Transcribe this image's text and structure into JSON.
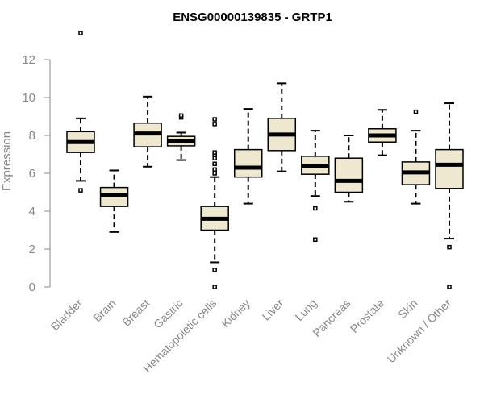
{
  "chart_data": {
    "type": "boxplot",
    "title": "ENSG00000139835 - GRTP1",
    "ylabel": "Expression",
    "xlabel": "",
    "ylim": [
      0,
      12
    ],
    "yticks": [
      0,
      2,
      4,
      6,
      8,
      10,
      12
    ],
    "grid": false,
    "box_color": "#efe8d1",
    "line_color": "#000000",
    "series": [
      {
        "category": "Bladder",
        "whisker_low": 5.6,
        "q1": 7.1,
        "median": 7.65,
        "q3": 8.2,
        "whisker_high": 8.9,
        "outliers": [
          5.1,
          13.4
        ]
      },
      {
        "category": "Brain",
        "whisker_low": 2.9,
        "q1": 4.25,
        "median": 4.85,
        "q3": 5.25,
        "whisker_high": 6.15,
        "outliers": []
      },
      {
        "category": "Breast",
        "whisker_low": 6.35,
        "q1": 7.4,
        "median": 8.1,
        "q3": 8.65,
        "whisker_high": 10.05,
        "outliers": []
      },
      {
        "category": "Gastric",
        "whisker_low": 6.7,
        "q1": 7.45,
        "median": 7.7,
        "q3": 7.95,
        "whisker_high": 8.15,
        "outliers": [
          8.95,
          9.05
        ]
      },
      {
        "category": "Hematopoietic cells",
        "whisker_low": 1.3,
        "q1": 3.0,
        "median": 3.6,
        "q3": 4.25,
        "whisker_high": 5.8,
        "outliers": [
          0.0,
          0.9,
          6.0,
          6.2,
          6.5,
          6.8,
          7.0,
          7.1,
          8.6,
          8.85
        ]
      },
      {
        "category": "Kidney",
        "whisker_low": 4.4,
        "q1": 5.8,
        "median": 6.3,
        "q3": 7.25,
        "whisker_high": 9.4,
        "outliers": []
      },
      {
        "category": "Liver",
        "whisker_low": 6.1,
        "q1": 7.2,
        "median": 8.05,
        "q3": 8.9,
        "whisker_high": 10.75,
        "outliers": []
      },
      {
        "category": "Lung",
        "whisker_low": 4.8,
        "q1": 5.95,
        "median": 6.4,
        "q3": 6.9,
        "whisker_high": 8.25,
        "outliers": [
          4.15,
          2.5
        ]
      },
      {
        "category": "Pancreas",
        "whisker_low": 4.5,
        "q1": 5.0,
        "median": 5.6,
        "q3": 6.8,
        "whisker_high": 8.0,
        "outliers": []
      },
      {
        "category": "Prostate",
        "whisker_low": 6.95,
        "q1": 7.65,
        "median": 8.0,
        "q3": 8.35,
        "whisker_high": 9.35,
        "outliers": []
      },
      {
        "category": "Skin",
        "whisker_low": 4.4,
        "q1": 5.4,
        "median": 6.05,
        "q3": 6.6,
        "whisker_high": 8.25,
        "outliers": [
          9.25
        ]
      },
      {
        "category": "Unknown / Other",
        "whisker_low": 2.55,
        "q1": 5.2,
        "median": 6.45,
        "q3": 7.25,
        "whisker_high": 9.7,
        "outliers": [
          2.1,
          0.0
        ]
      }
    ]
  }
}
